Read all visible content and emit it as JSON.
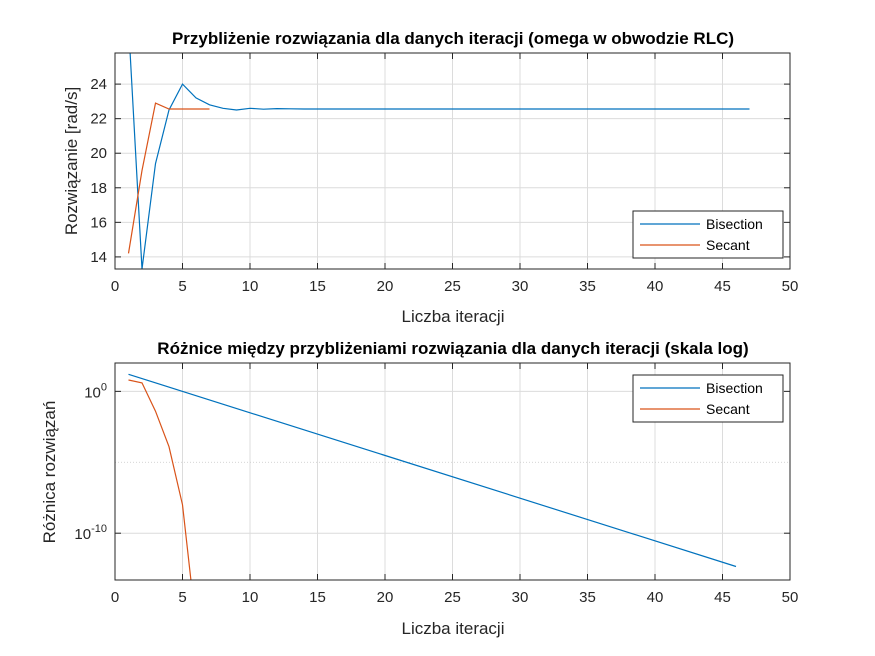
{
  "chart_data": [
    {
      "type": "line",
      "title": "Przybliżenie rozwiązania dla danych iteracji (omega w obwodzie RLC)",
      "xlabel": "Liczba iteracji",
      "ylabel": "Rozwiązanie [rad/s]",
      "xlim": [
        0,
        50
      ],
      "ylim": [
        13.3,
        25.8
      ],
      "yscale": "linear",
      "grid": true,
      "legend_position": "lower-right",
      "xticks": [
        0,
        5,
        10,
        15,
        20,
        25,
        30,
        35,
        40,
        45,
        50
      ],
      "yticks": [
        14,
        16,
        18,
        20,
        22,
        24
      ],
      "series": [
        {
          "name": "Bisection",
          "color": "#0072BD",
          "x": [
            1,
            2,
            3,
            4,
            5,
            6,
            7,
            8,
            9,
            10,
            11,
            12,
            13,
            14,
            15,
            16,
            17,
            18,
            19,
            20,
            21,
            22,
            23,
            24,
            25,
            26,
            27,
            28,
            29,
            30,
            31,
            32,
            33,
            34,
            35,
            36,
            37,
            38,
            39,
            40,
            41,
            42,
            43,
            44,
            45,
            46,
            47
          ],
          "y": [
            27.5,
            13.3,
            19.4,
            22.5,
            24.0,
            23.2,
            22.8,
            22.6,
            22.5,
            22.6,
            22.55,
            22.58,
            22.57,
            22.56,
            22.56,
            22.56,
            22.56,
            22.56,
            22.56,
            22.56,
            22.56,
            22.56,
            22.56,
            22.56,
            22.56,
            22.56,
            22.56,
            22.56,
            22.56,
            22.56,
            22.56,
            22.56,
            22.56,
            22.56,
            22.56,
            22.56,
            22.56,
            22.56,
            22.56,
            22.56,
            22.56,
            22.56,
            22.56,
            22.56,
            22.56,
            22.56,
            22.56
          ]
        },
        {
          "name": "Secant",
          "color": "#D95319",
          "x": [
            1,
            2,
            3,
            4,
            5,
            6,
            7
          ],
          "y": [
            14.2,
            19.0,
            22.9,
            22.56,
            22.56,
            22.56,
            22.56
          ]
        }
      ]
    },
    {
      "type": "line",
      "title": "Różnice między przybliżeniami rozwiązania dla danych iteracji (skala log)",
      "xlabel": "Liczba iteracji",
      "ylabel": "Różnica rozwiązań",
      "xlim": [
        0,
        50
      ],
      "ylim_log10": [
        -13.3,
        2
      ],
      "yscale": "log",
      "grid": true,
      "legend_position": "top-right",
      "xticks": [
        0,
        5,
        10,
        15,
        20,
        25,
        30,
        35,
        40,
        45,
        50
      ],
      "yticks": [
        {
          "label": "10",
          "exp": "0"
        },
        {
          "label": "10",
          "exp": "-10"
        }
      ],
      "series": [
        {
          "name": "Bisection",
          "color": "#0072BD",
          "x": [
            1,
            46
          ],
          "y_log10": [
            1.2,
            -12.35
          ]
        },
        {
          "name": "Secant",
          "color": "#D95319",
          "x": [
            1,
            2,
            3,
            4,
            5,
            6
          ],
          "y_log10": [
            0.8,
            0.6,
            -1.4,
            -3.9,
            -8.0,
            -16.5
          ]
        }
      ]
    }
  ]
}
